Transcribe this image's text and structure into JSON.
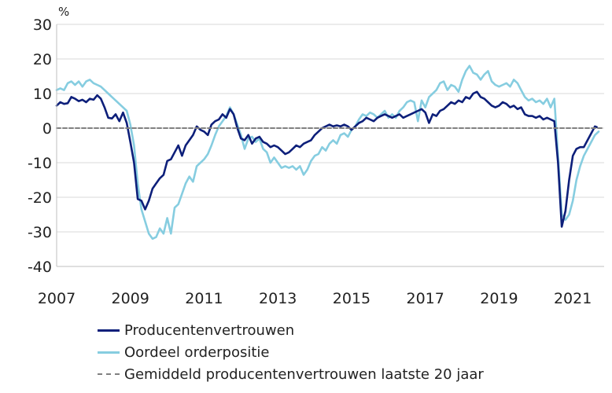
{
  "chart_data": {
    "type": "line",
    "unit_label": "%",
    "ylim": [
      -40,
      30
    ],
    "yticks": [
      30,
      20,
      10,
      0,
      -10,
      -20,
      -30,
      -40
    ],
    "xlim": [
      2007.0,
      2021.85
    ],
    "xticks": [
      2007,
      2009,
      2011,
      2013,
      2015,
      2017,
      2019,
      2021
    ],
    "grid": true,
    "legend_position": "bottom-left",
    "series": [
      {
        "name": "Producentenvertrouwen",
        "color": "#0d1f7a",
        "style": "solid",
        "points": [
          [
            2007.0,
            6.5
          ],
          [
            2007.1,
            7.5
          ],
          [
            2007.2,
            7.0
          ],
          [
            2007.3,
            7.2
          ],
          [
            2007.4,
            9.0
          ],
          [
            2007.5,
            8.5
          ],
          [
            2007.6,
            7.8
          ],
          [
            2007.7,
            8.2
          ],
          [
            2007.8,
            7.5
          ],
          [
            2007.9,
            8.5
          ],
          [
            2008.0,
            8.2
          ],
          [
            2008.1,
            9.5
          ],
          [
            2008.2,
            8.5
          ],
          [
            2008.3,
            6.0
          ],
          [
            2008.4,
            3.0
          ],
          [
            2008.5,
            2.8
          ],
          [
            2008.6,
            4.0
          ],
          [
            2008.7,
            2.0
          ],
          [
            2008.8,
            4.5
          ],
          [
            2008.9,
            1.5
          ],
          [
            2009.0,
            -4.0
          ],
          [
            2009.1,
            -10.0
          ],
          [
            2009.2,
            -20.5
          ],
          [
            2009.3,
            -21.0
          ],
          [
            2009.4,
            -23.5
          ],
          [
            2009.5,
            -21.0
          ],
          [
            2009.6,
            -17.5
          ],
          [
            2009.7,
            -16.0
          ],
          [
            2009.8,
            -14.5
          ],
          [
            2009.9,
            -13.5
          ],
          [
            2010.0,
            -9.5
          ],
          [
            2010.1,
            -9.0
          ],
          [
            2010.2,
            -7.0
          ],
          [
            2010.3,
            -5.0
          ],
          [
            2010.4,
            -8.0
          ],
          [
            2010.5,
            -5.0
          ],
          [
            2010.6,
            -3.5
          ],
          [
            2010.7,
            -2.0
          ],
          [
            2010.8,
            0.5
          ],
          [
            2010.9,
            -0.5
          ],
          [
            2011.0,
            -1.0
          ],
          [
            2011.1,
            -2.0
          ],
          [
            2011.2,
            1.0
          ],
          [
            2011.3,
            2.0
          ],
          [
            2011.4,
            2.5
          ],
          [
            2011.5,
            4.0
          ],
          [
            2011.6,
            3.0
          ],
          [
            2011.7,
            5.5
          ],
          [
            2011.8,
            4.0
          ],
          [
            2011.9,
            0.0
          ],
          [
            2012.0,
            -3.0
          ],
          [
            2012.1,
            -3.5
          ],
          [
            2012.2,
            -2.0
          ],
          [
            2012.3,
            -4.5
          ],
          [
            2012.4,
            -3.0
          ],
          [
            2012.5,
            -2.5
          ],
          [
            2012.6,
            -4.0
          ],
          [
            2012.7,
            -4.5
          ],
          [
            2012.8,
            -5.5
          ],
          [
            2012.9,
            -5.0
          ],
          [
            2013.0,
            -5.5
          ],
          [
            2013.1,
            -6.5
          ],
          [
            2013.2,
            -7.5
          ],
          [
            2013.3,
            -7.0
          ],
          [
            2013.4,
            -6.0
          ],
          [
            2013.5,
            -5.0
          ],
          [
            2013.6,
            -5.5
          ],
          [
            2013.7,
            -4.5
          ],
          [
            2013.8,
            -4.0
          ],
          [
            2013.9,
            -3.5
          ],
          [
            2014.0,
            -2.0
          ],
          [
            2014.1,
            -1.0
          ],
          [
            2014.2,
            0.0
          ],
          [
            2014.3,
            0.5
          ],
          [
            2014.4,
            1.0
          ],
          [
            2014.5,
            0.5
          ],
          [
            2014.6,
            0.8
          ],
          [
            2014.7,
            0.5
          ],
          [
            2014.8,
            1.0
          ],
          [
            2014.9,
            0.5
          ],
          [
            2015.0,
            -0.5
          ],
          [
            2015.1,
            0.5
          ],
          [
            2015.2,
            1.5
          ],
          [
            2015.3,
            2.0
          ],
          [
            2015.4,
            3.0
          ],
          [
            2015.5,
            2.5
          ],
          [
            2015.6,
            2.0
          ],
          [
            2015.7,
            3.0
          ],
          [
            2015.8,
            3.5
          ],
          [
            2015.9,
            4.0
          ],
          [
            2016.0,
            3.5
          ],
          [
            2016.1,
            3.0
          ],
          [
            2016.2,
            3.5
          ],
          [
            2016.3,
            4.0
          ],
          [
            2016.4,
            3.0
          ],
          [
            2016.5,
            3.5
          ],
          [
            2016.6,
            4.0
          ],
          [
            2016.7,
            4.5
          ],
          [
            2016.8,
            5.0
          ],
          [
            2016.9,
            5.5
          ],
          [
            2017.0,
            4.5
          ],
          [
            2017.1,
            1.5
          ],
          [
            2017.2,
            4.0
          ],
          [
            2017.3,
            3.5
          ],
          [
            2017.4,
            5.0
          ],
          [
            2017.5,
            5.5
          ],
          [
            2017.6,
            6.5
          ],
          [
            2017.7,
            7.5
          ],
          [
            2017.8,
            7.0
          ],
          [
            2017.9,
            8.0
          ],
          [
            2018.0,
            7.5
          ],
          [
            2018.1,
            9.0
          ],
          [
            2018.2,
            8.5
          ],
          [
            2018.3,
            10.0
          ],
          [
            2018.4,
            10.5
          ],
          [
            2018.5,
            9.0
          ],
          [
            2018.6,
            8.5
          ],
          [
            2018.7,
            7.5
          ],
          [
            2018.8,
            6.5
          ],
          [
            2018.9,
            6.0
          ],
          [
            2019.0,
            6.5
          ],
          [
            2019.1,
            7.5
          ],
          [
            2019.2,
            7.0
          ],
          [
            2019.3,
            6.0
          ],
          [
            2019.4,
            6.5
          ],
          [
            2019.5,
            5.5
          ],
          [
            2019.6,
            6.0
          ],
          [
            2019.7,
            4.0
          ],
          [
            2019.8,
            3.5
          ],
          [
            2019.9,
            3.5
          ],
          [
            2020.0,
            3.0
          ],
          [
            2020.1,
            3.5
          ],
          [
            2020.2,
            2.5
          ],
          [
            2020.3,
            3.0
          ],
          [
            2020.4,
            2.5
          ],
          [
            2020.5,
            2.0
          ],
          [
            2020.6,
            -10.0
          ],
          [
            2020.7,
            -28.5
          ],
          [
            2020.8,
            -24.0
          ],
          [
            2020.9,
            -15.0
          ],
          [
            2021.0,
            -8.0
          ],
          [
            2021.1,
            -6.0
          ],
          [
            2021.2,
            -5.5
          ],
          [
            2021.3,
            -5.5
          ],
          [
            2021.4,
            -3.5
          ],
          [
            2021.5,
            -1.5
          ],
          [
            2021.6,
            0.5
          ],
          [
            2021.65,
            0.3
          ]
        ]
      },
      {
        "name": "Oordeel orderpositie",
        "color": "#86cde0",
        "style": "solid",
        "points": [
          [
            2007.0,
            11.0
          ],
          [
            2007.1,
            11.5
          ],
          [
            2007.2,
            11.0
          ],
          [
            2007.3,
            13.0
          ],
          [
            2007.4,
            13.5
          ],
          [
            2007.5,
            12.5
          ],
          [
            2007.6,
            13.5
          ],
          [
            2007.7,
            12.0
          ],
          [
            2007.8,
            13.5
          ],
          [
            2007.9,
            14.0
          ],
          [
            2008.0,
            13.0
          ],
          [
            2008.1,
            12.5
          ],
          [
            2008.2,
            12.0
          ],
          [
            2008.3,
            11.0
          ],
          [
            2008.4,
            10.0
          ],
          [
            2008.5,
            9.0
          ],
          [
            2008.6,
            8.0
          ],
          [
            2008.7,
            7.0
          ],
          [
            2008.8,
            6.0
          ],
          [
            2008.9,
            5.0
          ],
          [
            2009.0,
            1.0
          ],
          [
            2009.1,
            -5.0
          ],
          [
            2009.2,
            -16.0
          ],
          [
            2009.3,
            -23.5
          ],
          [
            2009.4,
            -27.0
          ],
          [
            2009.5,
            -30.5
          ],
          [
            2009.6,
            -32.0
          ],
          [
            2009.7,
            -31.5
          ],
          [
            2009.8,
            -29.0
          ],
          [
            2009.9,
            -30.5
          ],
          [
            2010.0,
            -26.0
          ],
          [
            2010.1,
            -30.5
          ],
          [
            2010.2,
            -23.0
          ],
          [
            2010.3,
            -22.0
          ],
          [
            2010.4,
            -19.0
          ],
          [
            2010.5,
            -16.0
          ],
          [
            2010.6,
            -14.0
          ],
          [
            2010.7,
            -15.5
          ],
          [
            2010.8,
            -11.0
          ],
          [
            2010.9,
            -10.0
          ],
          [
            2011.0,
            -9.0
          ],
          [
            2011.1,
            -7.5
          ],
          [
            2011.2,
            -5.0
          ],
          [
            2011.3,
            -2.0
          ],
          [
            2011.4,
            0.5
          ],
          [
            2011.5,
            2.0
          ],
          [
            2011.6,
            3.5
          ],
          [
            2011.7,
            6.0
          ],
          [
            2011.8,
            4.0
          ],
          [
            2011.9,
            1.0
          ],
          [
            2012.0,
            -2.0
          ],
          [
            2012.1,
            -6.0
          ],
          [
            2012.2,
            -3.0
          ],
          [
            2012.3,
            -2.5
          ],
          [
            2012.4,
            -4.0
          ],
          [
            2012.5,
            -3.0
          ],
          [
            2012.6,
            -6.0
          ],
          [
            2012.7,
            -7.0
          ],
          [
            2012.8,
            -10.0
          ],
          [
            2012.9,
            -8.5
          ],
          [
            2013.0,
            -10.0
          ],
          [
            2013.1,
            -11.5
          ],
          [
            2013.2,
            -11.0
          ],
          [
            2013.3,
            -11.5
          ],
          [
            2013.4,
            -11.0
          ],
          [
            2013.5,
            -12.0
          ],
          [
            2013.6,
            -11.0
          ],
          [
            2013.7,
            -13.5
          ],
          [
            2013.8,
            -12.0
          ],
          [
            2013.9,
            -9.5
          ],
          [
            2014.0,
            -8.0
          ],
          [
            2014.1,
            -7.5
          ],
          [
            2014.2,
            -5.5
          ],
          [
            2014.3,
            -6.5
          ],
          [
            2014.4,
            -4.5
          ],
          [
            2014.5,
            -3.5
          ],
          [
            2014.6,
            -4.5
          ],
          [
            2014.7,
            -2.0
          ],
          [
            2014.8,
            -1.5
          ],
          [
            2014.9,
            -2.5
          ],
          [
            2015.0,
            -0.5
          ],
          [
            2015.1,
            0.5
          ],
          [
            2015.2,
            2.5
          ],
          [
            2015.3,
            4.0
          ],
          [
            2015.4,
            3.5
          ],
          [
            2015.5,
            4.5
          ],
          [
            2015.6,
            4.0
          ],
          [
            2015.7,
            3.0
          ],
          [
            2015.8,
            4.0
          ],
          [
            2015.9,
            5.0
          ],
          [
            2016.0,
            3.0
          ],
          [
            2016.1,
            4.0
          ],
          [
            2016.2,
            3.0
          ],
          [
            2016.3,
            5.0
          ],
          [
            2016.4,
            6.0
          ],
          [
            2016.5,
            7.5
          ],
          [
            2016.6,
            8.0
          ],
          [
            2016.7,
            7.5
          ],
          [
            2016.8,
            2.0
          ],
          [
            2016.9,
            8.0
          ],
          [
            2017.0,
            6.0
          ],
          [
            2017.1,
            9.0
          ],
          [
            2017.2,
            10.0
          ],
          [
            2017.3,
            11.0
          ],
          [
            2017.4,
            13.0
          ],
          [
            2017.5,
            13.5
          ],
          [
            2017.6,
            11.0
          ],
          [
            2017.7,
            12.5
          ],
          [
            2017.8,
            12.0
          ],
          [
            2017.9,
            10.5
          ],
          [
            2018.0,
            14.0
          ],
          [
            2018.1,
            16.5
          ],
          [
            2018.2,
            18.0
          ],
          [
            2018.3,
            16.0
          ],
          [
            2018.4,
            15.5
          ],
          [
            2018.5,
            14.0
          ],
          [
            2018.6,
            15.5
          ],
          [
            2018.7,
            16.5
          ],
          [
            2018.8,
            13.5
          ],
          [
            2018.9,
            12.5
          ],
          [
            2019.0,
            12.0
          ],
          [
            2019.1,
            12.5
          ],
          [
            2019.2,
            13.0
          ],
          [
            2019.3,
            12.0
          ],
          [
            2019.4,
            14.0
          ],
          [
            2019.5,
            13.0
          ],
          [
            2019.6,
            11.0
          ],
          [
            2019.7,
            9.0
          ],
          [
            2019.8,
            8.0
          ],
          [
            2019.9,
            8.5
          ],
          [
            2020.0,
            7.5
          ],
          [
            2020.1,
            8.0
          ],
          [
            2020.2,
            7.0
          ],
          [
            2020.3,
            8.5
          ],
          [
            2020.4,
            6.0
          ],
          [
            2020.5,
            8.5
          ],
          [
            2020.6,
            -8.0
          ],
          [
            2020.7,
            -25.0
          ],
          [
            2020.8,
            -26.5
          ],
          [
            2020.9,
            -25.0
          ],
          [
            2021.0,
            -21.0
          ],
          [
            2021.1,
            -15.0
          ],
          [
            2021.2,
            -11.0
          ],
          [
            2021.3,
            -8.0
          ],
          [
            2021.4,
            -6.0
          ],
          [
            2021.5,
            -4.0
          ],
          [
            2021.6,
            -2.0
          ],
          [
            2021.7,
            -1.0
          ]
        ]
      },
      {
        "name": "Gemiddeld producentenvertrouwen laatste 20 jaar",
        "color": "#808080",
        "style": "dashed",
        "points": [
          [
            2007.0,
            0.0
          ],
          [
            2021.85,
            0.0
          ]
        ]
      }
    ]
  }
}
